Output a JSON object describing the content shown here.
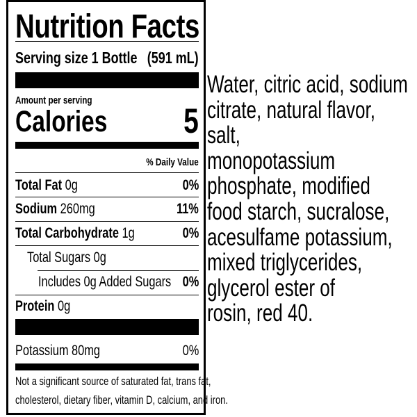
{
  "label": {
    "title": "Nutrition Facts",
    "serving_size_label": "Serving size",
    "serving_size_value": "1 Bottle",
    "serving_size_volume": "(591 mL)",
    "amount_per_serving": "Amount per serving",
    "calories_label": "Calories",
    "calories_value": "5",
    "daily_value_header": "% Daily Value",
    "nutrients": [
      {
        "name": "Total Fat",
        "amount": "0g",
        "dv": "0%"
      },
      {
        "name": "Sodium",
        "amount": "260mg",
        "dv": "11%"
      },
      {
        "name": "Total Carbohydrate",
        "amount": "1g",
        "dv": "0%"
      },
      {
        "name": "Total Sugars 0g",
        "amount": "",
        "dv": ""
      },
      {
        "name": "Includes 0g Added Sugars",
        "amount": "",
        "dv": "0%"
      },
      {
        "name": "Protein",
        "amount": "0g",
        "dv": ""
      },
      {
        "name": "Potassium 80mg",
        "amount": "",
        "dv": "0%"
      }
    ],
    "footnote_line1": "Not a significant source of saturated fat, trans fat,",
    "footnote_line2": "cholesterol, dietary fiber, vitamin D, calcium, and iron."
  },
  "ingredients": [
    "Water, citric acid, sodium",
    "citrate, natural flavor, salt,",
    "monopotassium",
    "phosphate, modified",
    "food starch, sucralose,",
    "acesulfame potassium,",
    "mixed triglycerides,",
    "glycerol ester of",
    "rosin, red 40."
  ]
}
